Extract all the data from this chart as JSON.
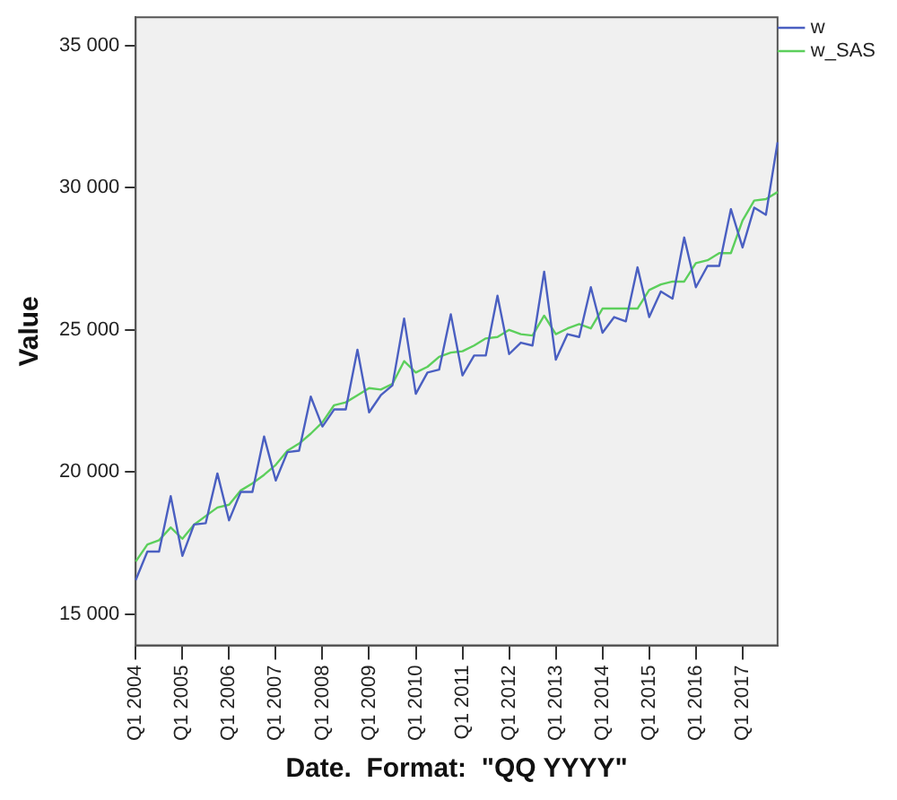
{
  "chart_data": {
    "type": "line",
    "xlabel": "Date.  Format:  \"QQ YYYY\"",
    "ylabel": "Value",
    "categories": [
      "Q1 2004",
      null,
      null,
      null,
      "Q1 2005",
      null,
      null,
      null,
      "Q1 2006",
      null,
      null,
      null,
      "Q1 2007",
      null,
      null,
      null,
      "Q1 2008",
      null,
      null,
      null,
      "Q1 2009",
      null,
      null,
      null,
      "Q1 2010",
      null,
      null,
      null,
      "Q1 2011",
      null,
      null,
      null,
      "Q1 2012",
      null,
      null,
      null,
      "Q1 2013",
      null,
      null,
      null,
      "Q1 2014",
      null,
      null,
      null,
      "Q1 2015",
      null,
      null,
      null,
      "Q1 2016",
      null,
      null,
      null,
      "Q1 2017",
      null,
      null,
      null
    ],
    "series": [
      {
        "name": "w",
        "color": "#4a5fc1",
        "values": [
          16200,
          17200,
          17200,
          19150,
          17050,
          18150,
          18200,
          19950,
          18300,
          19300,
          19300,
          21250,
          19700,
          20700,
          20750,
          22650,
          21600,
          22200,
          22200,
          24300,
          22100,
          22700,
          23050,
          25400,
          22750,
          23500,
          23600,
          25550,
          23400,
          24100,
          24100,
          26200,
          24150,
          24550,
          24450,
          27050,
          23950,
          24850,
          24750,
          26500,
          24900,
          25450,
          25300,
          27200,
          25450,
          26350,
          26100,
          28250,
          26500,
          27250,
          27250,
          29250,
          27900,
          29300,
          29050,
          31600
        ]
      },
      {
        "name": "w_SAS",
        "color": "#5ccf5c",
        "values": [
          16850,
          17450,
          17600,
          18050,
          17650,
          18150,
          18450,
          18750,
          18850,
          19350,
          19600,
          19900,
          20250,
          20750,
          21000,
          21350,
          21750,
          22350,
          22450,
          22700,
          22950,
          22900,
          23100,
          23900,
          23500,
          23700,
          24050,
          24200,
          24250,
          24450,
          24700,
          24750,
          25000,
          24850,
          24800,
          25500,
          24850,
          25050,
          25200,
          25050,
          25750,
          25750,
          25750,
          25750,
          26400,
          26600,
          26700,
          26700,
          27350,
          27450,
          27700,
          27700,
          28850,
          29550,
          29600,
          29850
        ]
      }
    ],
    "ylim": [
      13900,
      36000
    ],
    "yticks": [
      {
        "value": 15000,
        "label": "15 000"
      },
      {
        "value": 20000,
        "label": "20 000"
      },
      {
        "value": 25000,
        "label": "25 000"
      },
      {
        "value": 30000,
        "label": "30 000"
      },
      {
        "value": 35000,
        "label": "35 000"
      }
    ],
    "grid": false,
    "legend": "top right",
    "marker": "none",
    "line_style": "solid"
  }
}
